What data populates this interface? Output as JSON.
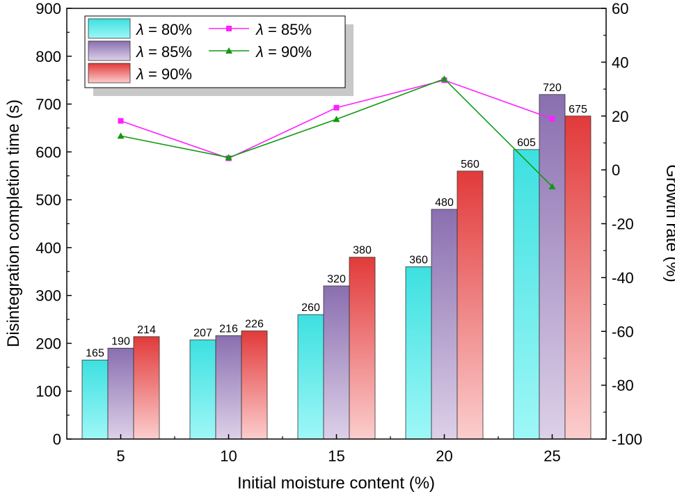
{
  "chart_data": {
    "type": "bar+line",
    "x_label": "Initial moisture content (%)",
    "y_left_label": "Disintegration completion time (s)",
    "y_right_label": "Growth rate (%)",
    "categories": [
      "5",
      "10",
      "15",
      "20",
      "25"
    ],
    "y_left_range": [
      0,
      900
    ],
    "y_left_ticks": [
      "0",
      "100",
      "200",
      "300",
      "400",
      "500",
      "600",
      "700",
      "800",
      "900"
    ],
    "y_right_range": [
      -100,
      60
    ],
    "y_right_ticks": [
      "-100",
      "-80",
      "-60",
      "-40",
      "-20",
      "0",
      "20",
      "40",
      "60"
    ],
    "bar_series": [
      {
        "name": "λ = 80%",
        "symbol": "λ",
        "rest": " = 80%",
        "values": [
          165,
          207,
          260,
          360,
          605
        ],
        "labels": [
          "165",
          "207",
          "260",
          "360",
          "605"
        ],
        "color_top": "#3de0e0",
        "color_bottom": "#9ff7f7"
      },
      {
        "name": "λ = 85%",
        "symbol": "λ",
        "rest": " = 85%",
        "values": [
          190,
          216,
          320,
          480,
          720
        ],
        "labels": [
          "190",
          "216",
          "320",
          "480",
          "720"
        ],
        "color_top": "#8a6fb0",
        "color_bottom": "#ddd0e8"
      },
      {
        "name": "λ = 90%",
        "symbol": "λ",
        "rest": " = 90%",
        "values": [
          214,
          226,
          380,
          560,
          675
        ],
        "labels": [
          "214",
          "226",
          "380",
          "560",
          "675"
        ],
        "color_top": "#e23a3a",
        "color_bottom": "#fccdcd"
      }
    ],
    "line_series": [
      {
        "name": "λ = 85%",
        "symbol": "λ",
        "rest": " = 85%",
        "values": [
          18.2,
          4.3,
          23.1,
          33.3,
          19.0
        ],
        "color": "#ff20ff",
        "marker": "square"
      },
      {
        "name": "λ = 90%",
        "symbol": "λ",
        "rest": " = 90%",
        "values": [
          12.6,
          4.6,
          18.8,
          33.8,
          -6.2
        ],
        "color": "#119911",
        "marker": "triangle"
      }
    ]
  }
}
